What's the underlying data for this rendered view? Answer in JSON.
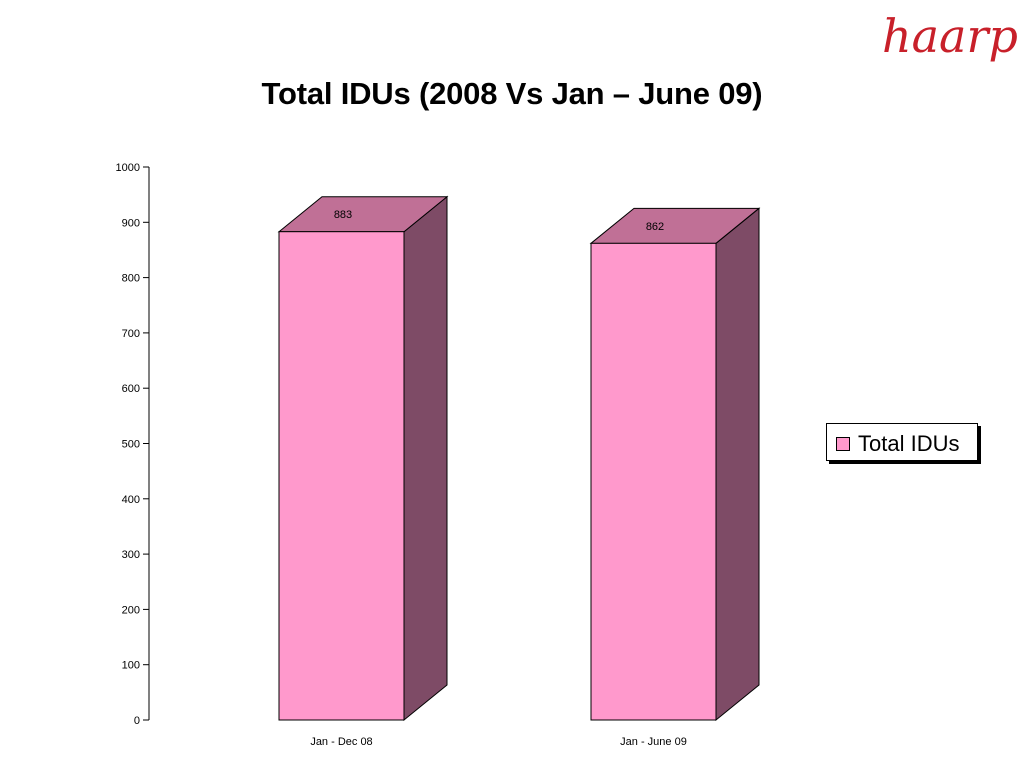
{
  "logo": {
    "text": "haarp",
    "color": "#c8202a"
  },
  "chart_data": {
    "type": "bar",
    "title": "Total IDUs (2008 Vs Jan – June 09)",
    "categories": [
      "Jan - Dec 08",
      "Jan - June 09"
    ],
    "series": [
      {
        "name": "Total IDUs",
        "values": [
          883,
          862
        ]
      }
    ],
    "data_labels": [
      "883",
      "862"
    ],
    "ylim": [
      0,
      1000
    ],
    "yticks": [
      0,
      100,
      200,
      300,
      400,
      500,
      600,
      700,
      800,
      900,
      1000
    ],
    "xlabel": "",
    "ylabel": "",
    "grid": false,
    "legend_position": "right",
    "style": "3d-bar",
    "colors": {
      "front": "#ff99cc",
      "top": "#c07096",
      "side": "#7e4b66"
    }
  }
}
